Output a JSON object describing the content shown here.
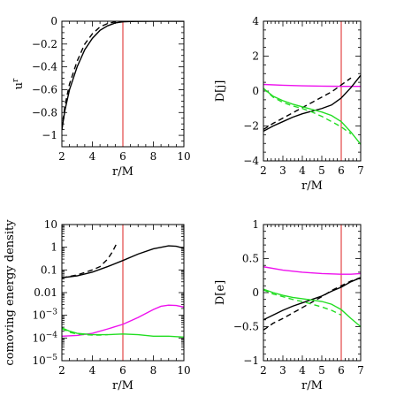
{
  "colors": {
    "solid_black": "#000000",
    "dashed_black": "#000000",
    "green": "#22dd22",
    "magenta": "#ee11ee",
    "marker": "#dd2222"
  },
  "chart_data": [
    {
      "id": "ur",
      "type": "line",
      "xlabel": "r/M",
      "ylabel": "u^r",
      "ylabel_main": "u",
      "ylabel_sup": "r",
      "xlim": [
        2,
        10
      ],
      "ylim": [
        -1.1,
        0
      ],
      "xticks": [
        2,
        4,
        6,
        8,
        10
      ],
      "yticks": [
        0,
        -0.2,
        -0.4,
        -0.6,
        -0.8,
        -1
      ],
      "ytick_labels": [
        "0",
        "−0.2",
        "−0.4",
        "−0.6",
        "−0.8",
        "−1"
      ],
      "marker_x": 6,
      "series": [
        {
          "style": "solid",
          "color": "black",
          "x": [
            2.0,
            2.2,
            2.5,
            3.0,
            3.5,
            4.0,
            4.5,
            5.0,
            5.5,
            6.0,
            6.5,
            7.0,
            8.0,
            9.0,
            10.0
          ],
          "y": [
            -0.95,
            -0.78,
            -0.6,
            -0.4,
            -0.25,
            -0.15,
            -0.08,
            -0.04,
            -0.015,
            -0.005,
            -0.002,
            -0.001,
            0,
            0,
            0
          ]
        },
        {
          "style": "dashed",
          "color": "black",
          "x": [
            2.0,
            2.2,
            2.5,
            3.0,
            3.5,
            4.0,
            4.5,
            5.0,
            5.5,
            6.0,
            6.5,
            7.0
          ],
          "y": [
            -0.95,
            -0.74,
            -0.55,
            -0.35,
            -0.2,
            -0.11,
            -0.05,
            -0.02,
            -0.005,
            -0.001,
            0,
            0
          ]
        }
      ]
    },
    {
      "id": "Dj",
      "type": "line",
      "xlabel": "r/M",
      "ylabel": "D[j]",
      "xlim": [
        2,
        7
      ],
      "ylim": [
        -4,
        4
      ],
      "xticks": [
        2,
        3,
        4,
        5,
        6,
        7
      ],
      "yticks": [
        4,
        2,
        0,
        -2,
        -4
      ],
      "ytick_labels": [
        "4",
        "2",
        "0",
        "−2",
        "−4"
      ],
      "marker_x": 6,
      "series": [
        {
          "style": "solid",
          "color": "magenta",
          "x": [
            2,
            3,
            4,
            5,
            6,
            7
          ],
          "y": [
            0.38,
            0.33,
            0.3,
            0.28,
            0.27,
            0.27
          ]
        },
        {
          "style": "solid",
          "color": "black",
          "x": [
            2,
            2.5,
            3,
            3.5,
            4,
            4.5,
            5,
            5.5,
            6,
            6.5,
            7
          ],
          "y": [
            -2.3,
            -2.0,
            -1.75,
            -1.5,
            -1.3,
            -1.15,
            -1.0,
            -0.8,
            -0.4,
            0.2,
            0.9
          ]
        },
        {
          "style": "dashed",
          "color": "black",
          "x": [
            2,
            2.5,
            3,
            3.5,
            4,
            4.5,
            5,
            5.5,
            6,
            6.5
          ],
          "y": [
            -2.2,
            -1.85,
            -1.55,
            -1.25,
            -0.95,
            -0.65,
            -0.35,
            -0.05,
            0.35,
            0.75
          ]
        },
        {
          "style": "solid",
          "color": "green",
          "x": [
            2,
            2.5,
            3,
            3.5,
            4,
            4.5,
            5,
            5.5,
            6,
            6.5,
            7
          ],
          "y": [
            0.15,
            -0.3,
            -0.55,
            -0.75,
            -0.9,
            -1.05,
            -1.2,
            -1.4,
            -1.75,
            -2.35,
            -3.05
          ]
        },
        {
          "style": "dashed",
          "color": "green",
          "x": [
            2,
            2.5,
            3,
            3.5,
            4,
            4.5,
            5,
            5.5,
            6,
            6.5
          ],
          "y": [
            0.15,
            -0.35,
            -0.65,
            -0.85,
            -1.0,
            -1.2,
            -1.45,
            -1.75,
            -2.05,
            -2.45
          ]
        }
      ]
    },
    {
      "id": "density",
      "type": "line",
      "xlabel": "r/M",
      "ylabel": "comoving energy density",
      "yscale": "log",
      "xlim": [
        2,
        10
      ],
      "ylim": [
        1e-05,
        10
      ],
      "xticks": [
        2,
        4,
        6,
        8,
        10
      ],
      "yticks": [
        10,
        1,
        0.1,
        0.01,
        0.001,
        0.0001,
        1e-05
      ],
      "ytick_labels": [
        {
          "base": "10",
          "exp": ""
        },
        {
          "base": "1",
          "exp": ""
        },
        {
          "base": "0.1",
          "exp": ""
        },
        {
          "base": "0.01",
          "exp": ""
        },
        {
          "base": "10",
          "exp": "−3"
        },
        {
          "base": "10",
          "exp": "−4"
        },
        {
          "base": "10",
          "exp": "−5"
        }
      ],
      "marker_x": 6,
      "series": [
        {
          "style": "solid",
          "color": "black",
          "x": [
            2,
            3,
            4,
            5,
            6,
            7,
            8,
            9,
            9.5,
            10
          ],
          "y": [
            0.045,
            0.055,
            0.08,
            0.14,
            0.26,
            0.5,
            0.85,
            1.15,
            1.1,
            0.9
          ]
        },
        {
          "style": "dashed",
          "color": "black",
          "x": [
            2,
            3,
            4,
            4.5,
            5,
            5.3,
            5.6
          ],
          "y": [
            0.045,
            0.06,
            0.1,
            0.14,
            0.3,
            0.6,
            1.5
          ]
        },
        {
          "style": "solid",
          "color": "magenta",
          "x": [
            2,
            3,
            4,
            5,
            6,
            7,
            8,
            8.5,
            9,
            9.5,
            10
          ],
          "y": [
            0.00012,
            0.00013,
            0.00016,
            0.00025,
            0.0004,
            0.0008,
            0.0018,
            0.0025,
            0.0028,
            0.0027,
            0.0023
          ]
        },
        {
          "style": "solid",
          "color": "green",
          "x": [
            2,
            2.5,
            3,
            4,
            5,
            6,
            7,
            8,
            9,
            10
          ],
          "y": [
            0.00028,
            0.0002,
            0.00016,
            0.00014,
            0.00014,
            0.00015,
            0.00014,
            0.00012,
            0.00012,
            0.00011
          ]
        },
        {
          "style": "dashed",
          "color": "green",
          "x": [
            2,
            2.5,
            3,
            3.5,
            4,
            4.5,
            5
          ],
          "y": [
            0.00026,
            0.00018,
            0.00015,
            0.00014,
            0.000135,
            0.000135,
            0.00014
          ]
        }
      ]
    },
    {
      "id": "De",
      "type": "line",
      "xlabel": "r/M",
      "ylabel": "D[e]",
      "xlim": [
        2,
        7
      ],
      "ylim": [
        -1,
        1
      ],
      "xticks": [
        2,
        3,
        4,
        5,
        6,
        7
      ],
      "yticks": [
        1,
        0.5,
        0,
        -0.5,
        -1
      ],
      "ytick_labels": [
        "1",
        "0.5",
        "0",
        "−0.5",
        "−1"
      ],
      "marker_x": 6,
      "series": [
        {
          "style": "solid",
          "color": "magenta",
          "x": [
            2,
            3,
            4,
            5,
            6,
            6.5,
            7
          ],
          "y": [
            0.38,
            0.33,
            0.3,
            0.28,
            0.27,
            0.27,
            0.28
          ]
        },
        {
          "style": "solid",
          "color": "black",
          "x": [
            2,
            2.5,
            3,
            3.5,
            4,
            4.5,
            5,
            5.5,
            6,
            6.5,
            7
          ],
          "y": [
            -0.4,
            -0.33,
            -0.26,
            -0.2,
            -0.15,
            -0.1,
            -0.05,
            0.02,
            0.08,
            0.16,
            0.22
          ]
        },
        {
          "style": "dashed",
          "color": "black",
          "x": [
            2,
            2.5,
            3,
            3.5,
            4,
            4.5,
            5,
            5.5,
            6,
            6.5,
            7
          ],
          "y": [
            -0.55,
            -0.45,
            -0.38,
            -0.3,
            -0.22,
            -0.14,
            -0.06,
            0.03,
            0.1,
            0.17,
            0.22
          ]
        },
        {
          "style": "solid",
          "color": "green",
          "x": [
            2,
            2.5,
            3,
            3.5,
            4,
            4.5,
            5,
            5.5,
            6,
            6.5,
            7
          ],
          "y": [
            0.05,
            0.0,
            -0.04,
            -0.07,
            -0.09,
            -0.11,
            -0.13,
            -0.17,
            -0.25,
            -0.38,
            -0.5
          ]
        },
        {
          "style": "dashed",
          "color": "green",
          "x": [
            2,
            2.5,
            3,
            3.5,
            4,
            4.5,
            5,
            5.5,
            6
          ],
          "y": [
            0.04,
            -0.02,
            -0.06,
            -0.1,
            -0.13,
            -0.17,
            -0.21,
            -0.26,
            -0.33
          ]
        }
      ]
    }
  ]
}
